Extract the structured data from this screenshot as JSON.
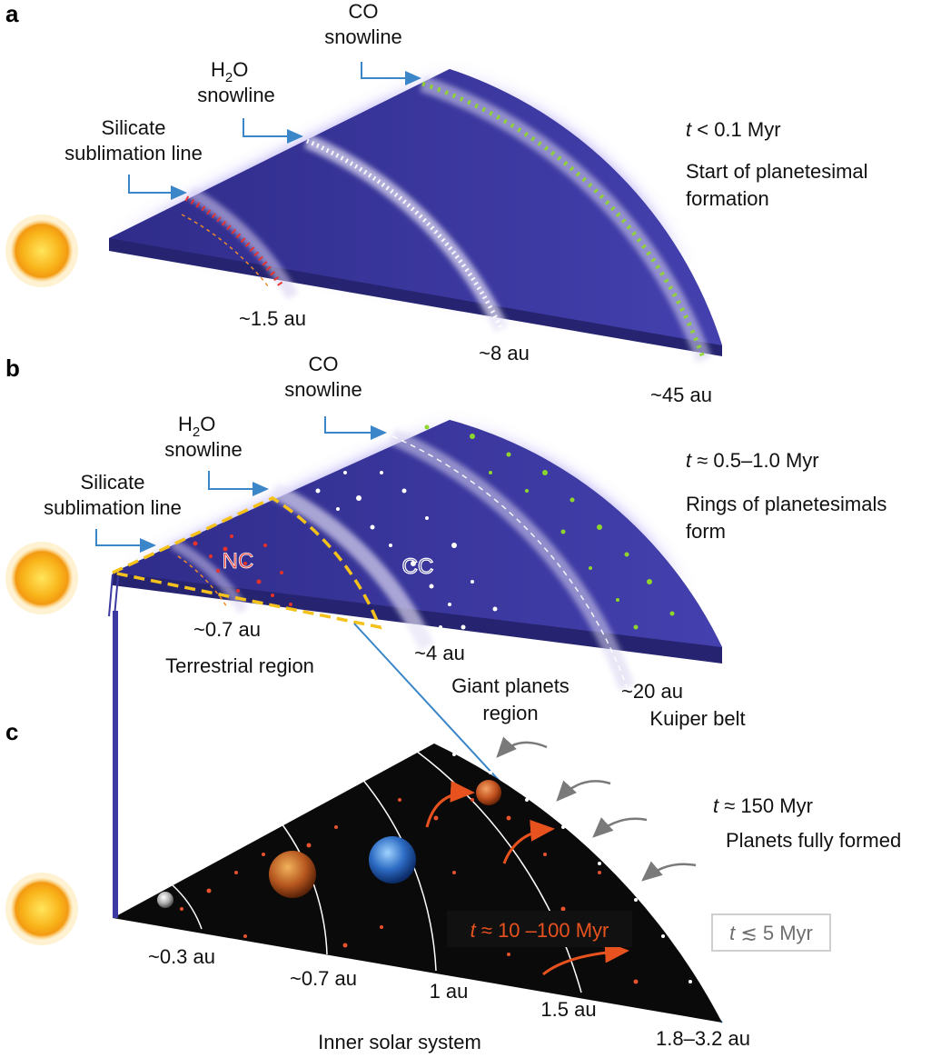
{
  "panels": [
    {
      "letter": "a",
      "time_var": "t",
      "time_value": " < 0.1 Myr",
      "desc_lines": [
        "Start of planetesimal",
        "formation"
      ],
      "lines": [
        {
          "name": "silicate",
          "label_lines": [
            "Silicate",
            "sublimation line"
          ],
          "distance": "~1.5 au"
        },
        {
          "name": "h2o",
          "label_main": "H",
          "label_sub": "2",
          "label_tail": "O",
          "label_line2": "snowline",
          "distance": "~8 au"
        },
        {
          "name": "co",
          "label_lines": [
            "CO",
            "snowline"
          ],
          "distance": "~45 au"
        }
      ]
    },
    {
      "letter": "b",
      "time_var": "t",
      "time_value": " ≈ 0.5–1.0 Myr",
      "desc_lines": [
        "Rings of planetesimals",
        "form"
      ],
      "lines": [
        {
          "name": "silicate",
          "label_lines": [
            "Silicate",
            "sublimation line"
          ],
          "distance": "~0.7 au"
        },
        {
          "name": "h2o",
          "label_main": "H",
          "label_sub": "2",
          "label_tail": "O",
          "label_line2": "snowline",
          "distance": "~4 au"
        },
        {
          "name": "co",
          "label_lines": [
            "CO",
            "snowline"
          ],
          "distance": "~20 au"
        }
      ],
      "regions": {
        "terrestrial": "Terrestrial region",
        "giant": [
          "Giant planets",
          "region"
        ],
        "kuiper": "Kuiper belt"
      },
      "reservoirs": {
        "nc": "NC",
        "cc": "CC"
      }
    },
    {
      "letter": "c",
      "time_var": "t",
      "time_value": " ≈ 150 Myr",
      "desc": "Planets fully formed",
      "distances": [
        "~0.3 au",
        "~0.7 au",
        "1 au",
        "1.5 au",
        "1.8–3.2 au"
      ],
      "title": "Inner solar system",
      "box_red": {
        "var": "t",
        "value": " ≈ 10 –100 Myr"
      },
      "box_gray": {
        "var": "t",
        "value": " ≲ 5 Myr"
      }
    }
  ],
  "colors": {
    "disk": "#3c3aa0",
    "disk_side": "#262470",
    "nc": "#e8322a",
    "cc": "#ffffff",
    "kuiper": "#8fd62c",
    "arrow": "#3a86c8",
    "orange_arrow": "#e8521e",
    "sun": "#f7b318",
    "terrestrial_outline": "#f5c21b"
  }
}
